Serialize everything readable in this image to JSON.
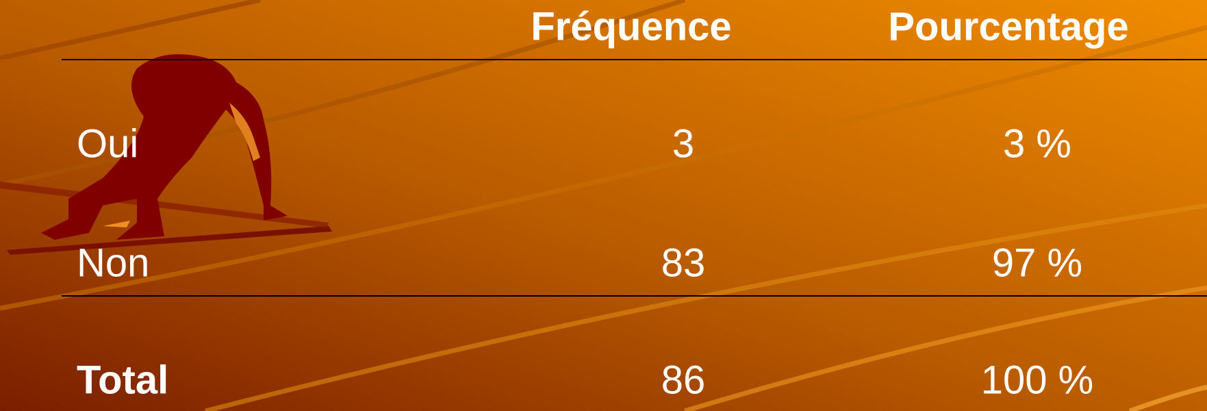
{
  "table": {
    "header": [
      "Fréquence",
      "Pourcentage"
    ],
    "rows": [
      [
        "Oui",
        "3",
        "3 %"
      ],
      [
        "Non",
        "83",
        "97 %"
      ],
      [
        "Total",
        "86",
        "100 %"
      ]
    ]
  }
}
